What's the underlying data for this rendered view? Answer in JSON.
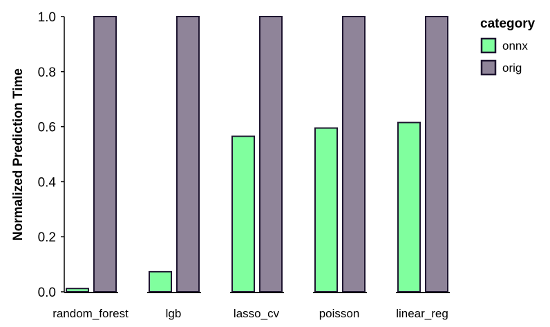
{
  "chart_data": {
    "type": "bar",
    "title": "",
    "xlabel": "",
    "ylabel": "Normalized Prediction Time",
    "ylim": [
      0,
      1.0
    ],
    "yticks": [
      "0.0",
      "0.2",
      "0.4",
      "0.6",
      "0.8",
      "1.0"
    ],
    "categories": [
      "random_forest",
      "lgb",
      "lasso_cv",
      "poisson",
      "linear_reg"
    ],
    "series": [
      {
        "name": "onnx",
        "values": [
          0.012,
          0.073,
          0.565,
          0.595,
          0.615
        ],
        "color": "#80ff9e"
      },
      {
        "name": "orig",
        "values": [
          1.0,
          1.0,
          1.0,
          1.0,
          1.0
        ],
        "color": "#8f8499"
      }
    ],
    "legend": {
      "title": "category",
      "placement": "right"
    },
    "grid": false,
    "edge_color": "#1e1530"
  }
}
